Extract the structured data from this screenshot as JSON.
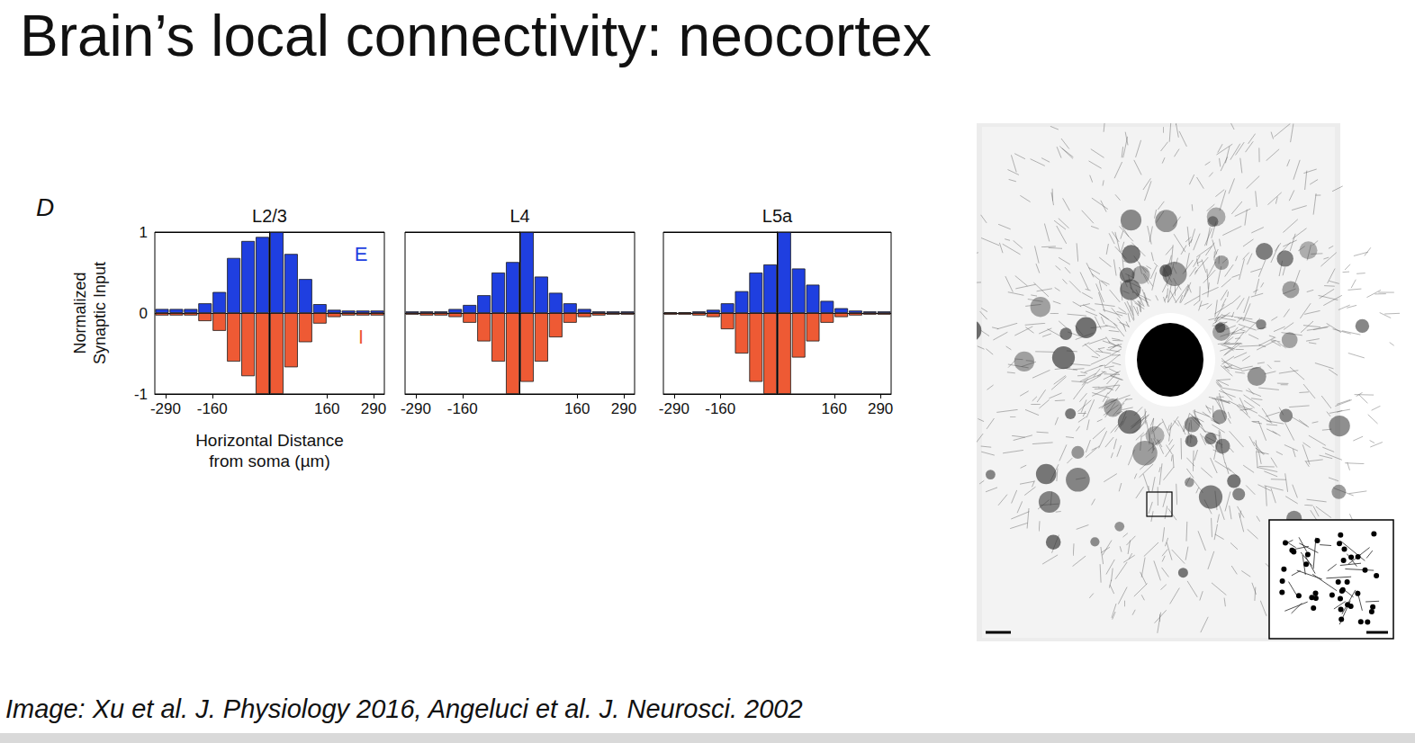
{
  "title": "Brain’s local connectivity: neocortex",
  "panel_label": "D",
  "citation": "Image: Xu et al. J. Physiology 2016, Angeluci et al. J. Neurosci. 2002",
  "chart_data": [
    {
      "type": "bar",
      "title": "L2/3",
      "x": [
        -300,
        -260,
        -220,
        -180,
        -140,
        -100,
        -60,
        -20,
        20,
        60,
        100,
        140,
        180,
        220,
        260,
        300
      ],
      "series": [
        {
          "name": "E",
          "color": "#1f3fe0",
          "values": [
            0.05,
            0.05,
            0.05,
            0.12,
            0.26,
            0.68,
            0.89,
            0.94,
            1.0,
            0.73,
            0.42,
            0.11,
            0.04,
            0.03,
            0.03,
            0.03
          ]
        },
        {
          "name": "I",
          "color": "#ee5a34",
          "values": [
            -0.03,
            -0.03,
            -0.03,
            -0.1,
            -0.22,
            -0.6,
            -0.78,
            -1.0,
            -1.0,
            -0.67,
            -0.36,
            -0.13,
            -0.05,
            -0.03,
            -0.03,
            -0.03
          ]
        }
      ],
      "xlim": [
        -320,
        320
      ],
      "xticks": [
        -290,
        -160,
        160,
        290
      ],
      "ylim": [
        -1,
        1
      ],
      "yticks": [
        -1,
        0,
        1
      ],
      "x_label": "Horizontal Distance from soma (µm)",
      "y_label": "Normalized Synaptic Input",
      "legend": "right",
      "grid": true
    },
    {
      "type": "bar",
      "title": "L4",
      "x": [
        -300,
        -260,
        -220,
        -180,
        -140,
        -100,
        -60,
        -20,
        20,
        60,
        100,
        140,
        180,
        220,
        260,
        300
      ],
      "series": [
        {
          "name": "E",
          "color": "#1f3fe0",
          "values": [
            0.02,
            0.02,
            0.02,
            0.05,
            0.1,
            0.22,
            0.5,
            0.63,
            1.0,
            0.45,
            0.25,
            0.12,
            0.05,
            0.02,
            0.02,
            0.02
          ]
        },
        {
          "name": "I",
          "color": "#ee5a34",
          "values": [
            -0.02,
            -0.03,
            -0.03,
            -0.05,
            -0.12,
            -0.35,
            -0.6,
            -1.0,
            -0.85,
            -0.6,
            -0.3,
            -0.12,
            -0.05,
            -0.03,
            -0.02,
            -0.02
          ]
        }
      ],
      "xlim": [
        -320,
        320
      ],
      "xticks": [
        -290,
        -160,
        160,
        290
      ],
      "ylim": [
        -1,
        1
      ],
      "yticks": [
        -1,
        0,
        1
      ],
      "tick_labels": "x",
      "grid": true
    },
    {
      "type": "bar",
      "title": "L5a",
      "x": [
        -300,
        -260,
        -220,
        -180,
        -140,
        -100,
        -60,
        -20,
        20,
        60,
        100,
        140,
        180,
        220,
        260,
        300
      ],
      "series": [
        {
          "name": "E",
          "color": "#1f3fe0",
          "values": [
            0.01,
            0.01,
            0.02,
            0.04,
            0.12,
            0.27,
            0.5,
            0.6,
            1.0,
            0.55,
            0.35,
            0.15,
            0.06,
            0.03,
            0.02,
            0.02
          ]
        },
        {
          "name": "I",
          "color": "#ee5a34",
          "values": [
            -0.02,
            -0.02,
            -0.03,
            -0.05,
            -0.2,
            -0.5,
            -0.85,
            -1.0,
            -1.0,
            -0.55,
            -0.35,
            -0.12,
            -0.05,
            -0.03,
            -0.02,
            -0.02
          ]
        }
      ],
      "xlim": [
        -320,
        320
      ],
      "xticks": [
        -290,
        -160,
        160,
        290
      ],
      "ylim": [
        -1,
        1
      ],
      "yticks": [
        -1,
        0,
        1
      ],
      "tick_labels": "x",
      "grid": true
    }
  ]
}
